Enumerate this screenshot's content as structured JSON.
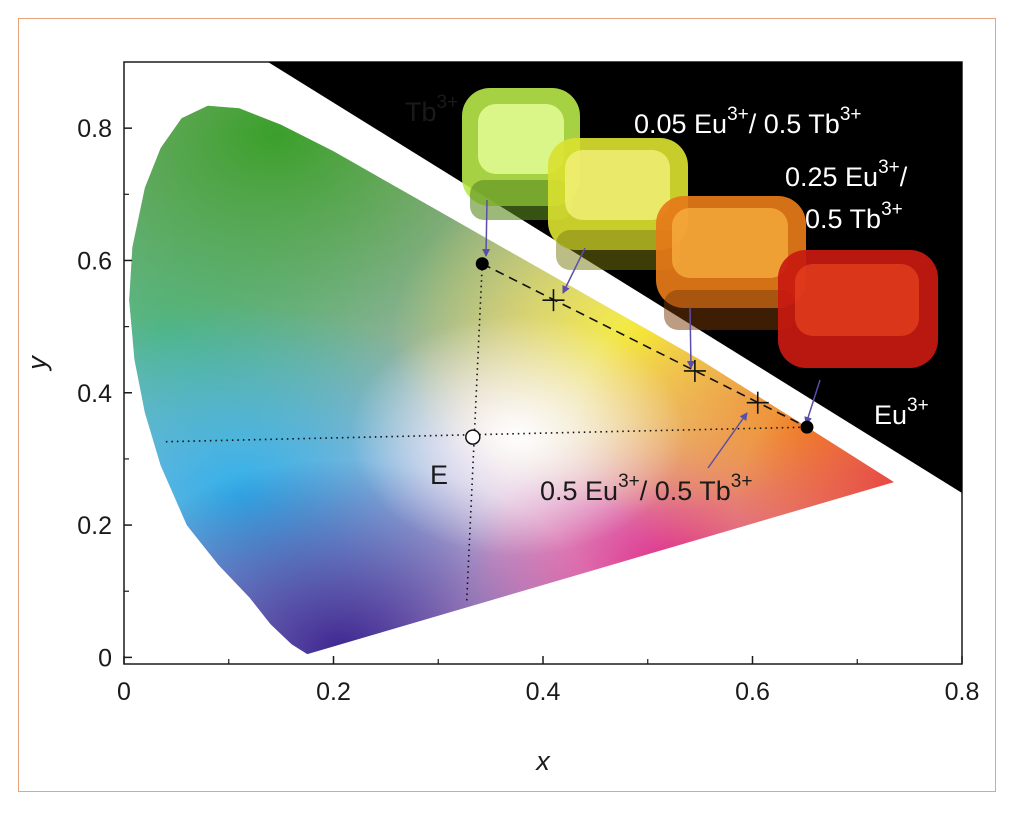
{
  "chart_data": {
    "type": "scatter",
    "xlabel": "x",
    "ylabel": "y",
    "xlim": [
      0,
      0.8
    ],
    "ylim": [
      -0.01,
      0.9
    ],
    "x_ticks": [
      {
        "value": 0,
        "label": "0"
      },
      {
        "value": 0.2,
        "label": "0.2"
      },
      {
        "value": 0.4,
        "label": "0.4"
      },
      {
        "value": 0.6,
        "label": "0.6"
      },
      {
        "value": 0.8,
        "label": "0.8"
      }
    ],
    "y_ticks": [
      {
        "value": 0,
        "label": "0"
      },
      {
        "value": 0.2,
        "label": "0.2"
      },
      {
        "value": 0.4,
        "label": "0.4"
      },
      {
        "value": 0.6,
        "label": "0.6"
      },
      {
        "value": 0.8,
        "label": "0.8"
      }
    ],
    "grid": false,
    "colors": {
      "axis": "#1a1a1a",
      "border": "#e8a37a",
      "arrow": "#5a4fa8",
      "photo_background": "#000000"
    },
    "gamut_locus": [
      [
        0.175,
        0.005
      ],
      [
        0.16,
        0.02
      ],
      [
        0.14,
        0.05
      ],
      [
        0.12,
        0.09
      ],
      [
        0.09,
        0.14
      ],
      [
        0.06,
        0.2
      ],
      [
        0.035,
        0.29
      ],
      [
        0.02,
        0.37
      ],
      [
        0.01,
        0.45
      ],
      [
        0.005,
        0.54
      ],
      [
        0.008,
        0.62
      ],
      [
        0.02,
        0.71
      ],
      [
        0.035,
        0.77
      ],
      [
        0.055,
        0.815
      ],
      [
        0.08,
        0.834
      ],
      [
        0.11,
        0.83
      ],
      [
        0.15,
        0.805
      ],
      [
        0.2,
        0.765
      ],
      [
        0.25,
        0.72
      ],
      [
        0.3,
        0.675
      ],
      [
        0.35,
        0.63
      ],
      [
        0.4,
        0.585
      ],
      [
        0.45,
        0.54
      ],
      [
        0.5,
        0.495
      ],
      [
        0.55,
        0.45
      ],
      [
        0.6,
        0.4
      ],
      [
        0.65,
        0.35
      ],
      [
        0.7,
        0.3
      ],
      [
        0.735,
        0.265
      ]
    ],
    "points": [
      {
        "id": "tb",
        "x": 0.342,
        "y": 0.595,
        "marker": "filled-circle"
      },
      {
        "id": "eu005",
        "x": 0.41,
        "y": 0.54,
        "marker": "plus"
      },
      {
        "id": "eu025",
        "x": 0.545,
        "y": 0.433,
        "marker": "plus"
      },
      {
        "id": "eu05",
        "x": 0.605,
        "y": 0.385,
        "marker": "plus"
      },
      {
        "id": "eu",
        "x": 0.652,
        "y": 0.348,
        "marker": "filled-circle"
      },
      {
        "id": "e",
        "x": 0.333,
        "y": 0.333,
        "marker": "open-circle"
      }
    ],
    "dashed_line": {
      "from": [
        0.342,
        0.595
      ],
      "to": [
        0.652,
        0.348
      ]
    },
    "dotted_lines": [
      {
        "from": [
          0.04,
          0.326
        ],
        "to": [
          0.652,
          0.348
        ]
      },
      {
        "from": [
          0.342,
          0.595
        ],
        "to": [
          0.327,
          0.08
        ]
      }
    ],
    "annotations": [
      {
        "id": "label-tb",
        "base": "Tb",
        "sup": "3+"
      },
      {
        "id": "label-005",
        "parts": [
          "0.05 Eu",
          "3+",
          "/ 0.5 Tb",
          "3+"
        ]
      },
      {
        "id": "label-025a",
        "parts": [
          "0.25 Eu",
          "3+",
          "/"
        ]
      },
      {
        "id": "label-025b",
        "parts": [
          "0.5 Tb",
          "3+"
        ]
      },
      {
        "id": "label-eu",
        "base": "Eu",
        "sup": "3+"
      },
      {
        "id": "label-05",
        "parts": [
          "0.5 Eu",
          "3+",
          "/ 0.5 Tb",
          "3+"
        ]
      },
      {
        "id": "label-e",
        "text": "E"
      }
    ]
  }
}
